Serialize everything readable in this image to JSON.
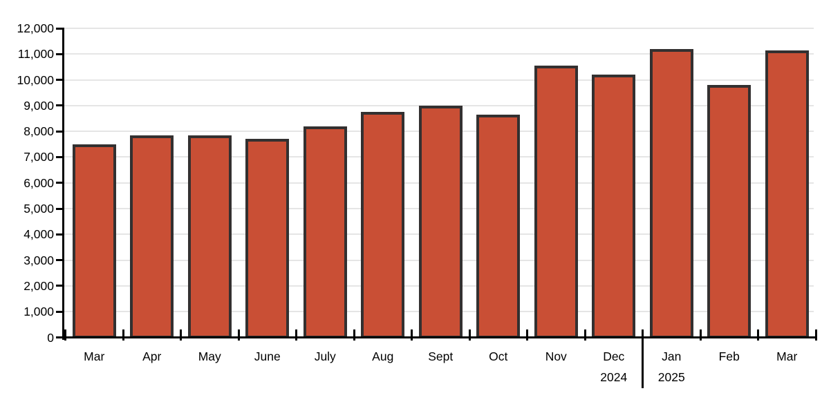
{
  "chart_data": {
    "type": "bar",
    "title": "",
    "xlabel": "",
    "ylabel": "",
    "categories": [
      "Mar",
      "Apr",
      "May",
      "June",
      "July",
      "Aug",
      "Sept",
      "Oct",
      "Nov",
      "Dec",
      "Jan",
      "Feb",
      "Mar"
    ],
    "values": [
      7450,
      7800,
      7800,
      7650,
      8150,
      8700,
      8950,
      8600,
      10500,
      10150,
      11150,
      9750,
      11100
    ],
    "year_labels": [
      {
        "text": "2024",
        "month_index": 9
      },
      {
        "text": "2025",
        "month_index": 10
      }
    ],
    "divider_after_index": 9,
    "ylim": [
      0,
      12000
    ],
    "y_tick_step": 1000,
    "y_tick_labels": [
      "0",
      "1,000",
      "2,000",
      "3,000",
      "4,000",
      "5,000",
      "6,000",
      "7,000",
      "8,000",
      "9,000",
      "10,000",
      "11,000",
      "12,000"
    ],
    "grid": true,
    "legend": false,
    "colors": {
      "bar_fill": "#c94f35",
      "bar_stroke": "#333030",
      "gridline": "#e5e5e5",
      "axis": "#000000",
      "text": "#000000",
      "background": "#ffffff"
    }
  }
}
